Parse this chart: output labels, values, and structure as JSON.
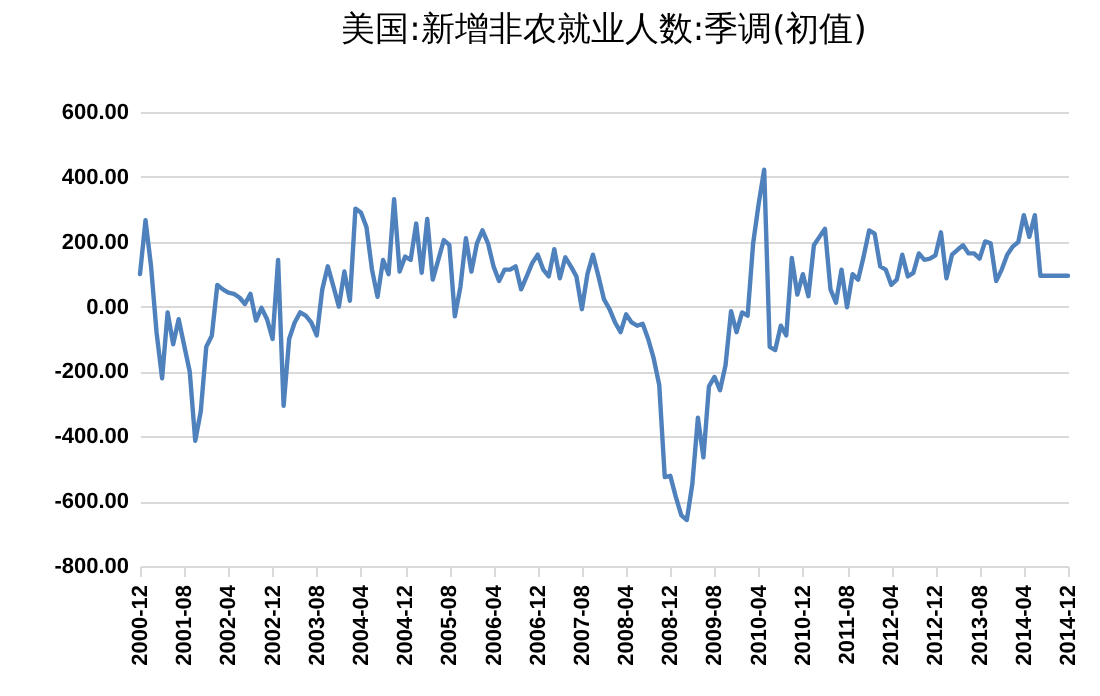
{
  "chart_data": {
    "type": "line",
    "title": "美国:新增非农就业人数:季调(初值)",
    "categories": [
      "2000-12",
      null,
      null,
      null,
      null,
      null,
      null,
      null,
      "2001-08",
      null,
      null,
      null,
      null,
      null,
      null,
      null,
      "2002-04",
      null,
      null,
      null,
      null,
      null,
      null,
      null,
      "2002-12",
      null,
      null,
      null,
      null,
      null,
      null,
      null,
      "2003-08",
      null,
      null,
      null,
      null,
      null,
      null,
      null,
      "2004-04",
      null,
      null,
      null,
      null,
      null,
      null,
      null,
      "2004-12",
      null,
      null,
      null,
      null,
      null,
      null,
      null,
      "2005-08",
      null,
      null,
      null,
      null,
      null,
      null,
      null,
      "2006-04",
      null,
      null,
      null,
      null,
      null,
      null,
      null,
      "2006-12",
      null,
      null,
      null,
      null,
      null,
      null,
      null,
      "2007-08",
      null,
      null,
      null,
      null,
      null,
      null,
      null,
      "2008-04",
      null,
      null,
      null,
      null,
      null,
      null,
      null,
      "2008-12",
      null,
      null,
      null,
      null,
      null,
      null,
      null,
      "2009-08",
      null,
      null,
      null,
      null,
      null,
      null,
      null,
      "2010-04",
      null,
      null,
      null,
      null,
      null,
      null,
      null,
      "2010-12",
      null,
      null,
      null,
      null,
      null,
      null,
      null,
      "2011-08",
      null,
      null,
      null,
      null,
      null,
      null,
      null,
      "2012-04",
      null,
      null,
      null,
      null,
      null,
      null,
      null,
      "2012-12",
      null,
      null,
      null,
      null,
      null,
      null,
      null,
      "2013-08",
      null,
      null,
      null,
      null,
      null,
      null,
      null,
      "2014-04",
      null,
      null,
      null,
      null,
      null,
      null,
      null,
      "2014-12"
    ],
    "series": [
      {
        "color": "#4f81bd",
        "values": [
          100,
          266,
          124,
          -80,
          -221,
          -18,
          -116,
          -39,
          -120,
          -200,
          -414,
          -323,
          -124,
          -90,
          67,
          53,
          43,
          39,
          28,
          8,
          39,
          -43,
          -4,
          -39,
          -100,
          144,
          -306,
          -100,
          -49,
          -18,
          -28,
          -49,
          -89,
          53,
          124,
          63,
          0,
          108,
          18,
          302,
          290,
          245,
          114,
          30,
          144,
          100,
          331,
          108,
          154,
          144,
          256,
          104,
          270,
          83,
          144,
          205,
          190,
          -30,
          60,
          211,
          108,
          195,
          235,
          195,
          124,
          79,
          114,
          114,
          124,
          53,
          93,
          134,
          160,
          114,
          93,
          177,
          87,
          152,
          124,
          93,
          -8,
          100,
          160,
          93,
          22,
          -8,
          -49,
          -79,
          -24,
          -49,
          -59,
          -53,
          -100,
          -160,
          -242,
          -526,
          -522,
          -587,
          -644,
          -658,
          -546,
          -343,
          -465,
          -246,
          -217,
          -258,
          -181,
          -14,
          -79,
          -18,
          -28,
          195,
          317,
          422,
          -124,
          -134,
          -59,
          -89,
          150,
          37,
          100,
          32,
          189,
          215,
          240,
          53,
          12,
          114,
          -2,
          100,
          83,
          154,
          235,
          225,
          124,
          114,
          67,
          83,
          160,
          93,
          104,
          164,
          144,
          148,
          158,
          229,
          87,
          160,
          175,
          189,
          164,
          164,
          148,
          201,
          195,
          79,
          114,
          160,
          185,
          199,
          282,
          215,
          282,
          95,
          95,
          95,
          95,
          95,
          95
        ]
      }
    ],
    "ylim": [
      -800,
      600
    ],
    "yticks": [
      {
        "value": -800,
        "label": "-800.00"
      },
      {
        "value": -600,
        "label": "-600.00"
      },
      {
        "value": -400,
        "label": "-400.00"
      },
      {
        "value": -200,
        "label": "-200.00"
      },
      {
        "value": 0,
        "label": "0.00"
      },
      {
        "value": 200,
        "label": "200.00"
      },
      {
        "value": 400,
        "label": "400.00"
      },
      {
        "value": 600,
        "label": "600.00"
      }
    ],
    "grid": "y"
  }
}
